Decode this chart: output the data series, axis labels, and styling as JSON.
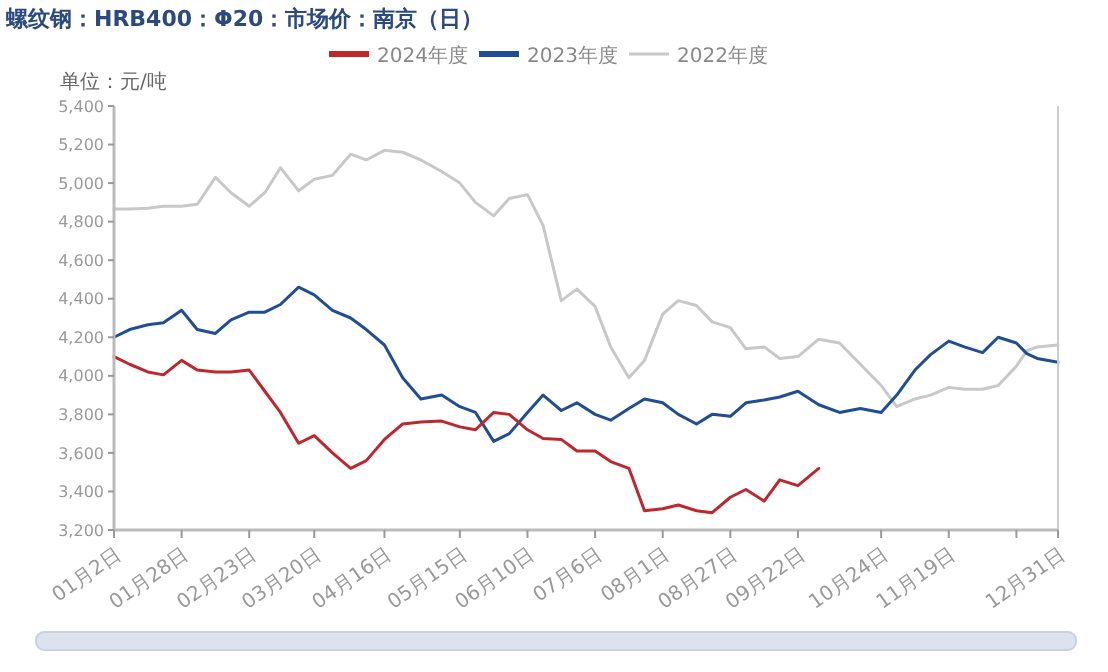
{
  "chart_data": {
    "type": "line",
    "title": "螺纹钢：HRB400：Φ20：市场价：南京（日）",
    "ylabel": "单位：元/吨",
    "x": [
      "--01-02",
      "--01-08",
      "--01-15",
      "--01-21",
      "--01-28",
      "--02-03",
      "--02-10",
      "--02-16",
      "--02-23",
      "--03-01",
      "--03-07",
      "--03-14",
      "--03-20",
      "--03-27",
      "--04-03",
      "--04-09",
      "--04-16",
      "--04-23",
      "--04-30",
      "--05-08",
      "--05-15",
      "--05-21",
      "--05-28",
      "--06-03",
      "--06-10",
      "--06-16",
      "--06-23",
      "--06-29",
      "--07-06",
      "--07-12",
      "--07-19",
      "--07-25",
      "--08-01",
      "--08-07",
      "--08-14",
      "--08-20",
      "--08-27",
      "--09-02",
      "--09-09",
      "--09-15",
      "--09-22",
      "--09-30",
      "--10-08",
      "--10-16",
      "--10-24",
      "--10-30",
      "--11-06",
      "--11-12",
      "--11-19",
      "--11-25",
      "--12-02",
      "--12-08",
      "--12-15",
      "--12-19",
      "--12-23",
      "--12-31"
    ],
    "series": [
      {
        "name": "2024年度",
        "color": "#c0272d",
        "values": [
          4100,
          4060,
          4020,
          4005,
          4080,
          4030,
          4020,
          4020,
          4030,
          3920,
          3810,
          3650,
          3690,
          3600,
          3520,
          3560,
          3670,
          3750,
          3760,
          3765,
          3735,
          3720,
          3810,
          3800,
          3720,
          3675,
          3670,
          3610,
          3610,
          3555,
          3520,
          3300,
          3310,
          3330,
          3300,
          3290,
          3370,
          3410,
          3350,
          3460,
          3430,
          3520,
          null,
          null,
          null,
          null,
          null,
          null,
          null,
          null,
          null,
          null,
          null,
          null,
          null,
          null
        ]
      },
      {
        "name": "2023年度",
        "color": "#1f4e96",
        "values": [
          4200,
          4240,
          4265,
          4275,
          4340,
          4240,
          4220,
          4290,
          4330,
          4330,
          4370,
          4460,
          4420,
          4340,
          4300,
          4240,
          4160,
          3990,
          3880,
          3900,
          3840,
          3810,
          3660,
          3700,
          3810,
          3900,
          3820,
          3860,
          3800,
          3770,
          3830,
          3880,
          3860,
          3800,
          3750,
          3800,
          3790,
          3860,
          3875,
          3890,
          3920,
          3850,
          3810,
          3830,
          3810,
          3900,
          4030,
          4110,
          4180,
          4150,
          4120,
          4200,
          4170,
          4115,
          4090,
          4070
        ]
      },
      {
        "name": "2022年度",
        "color": "#c8c8c8",
        "values": [
          4866,
          4866,
          4870,
          4880,
          4880,
          4890,
          5030,
          4950,
          4880,
          4950,
          5080,
          4960,
          5020,
          5040,
          5150,
          5120,
          5170,
          5160,
          5120,
          5060,
          5000,
          4900,
          4830,
          4920,
          4940,
          4780,
          4390,
          4450,
          4360,
          4150,
          3990,
          4080,
          4320,
          4390,
          4365,
          4280,
          4250,
          4140,
          4150,
          4090,
          4100,
          4190,
          4170,
          4060,
          3950,
          3840,
          3880,
          3900,
          3940,
          3930,
          3930,
          3950,
          4050,
          4130,
          4150,
          4160
        ]
      }
    ],
    "xlim": [
      "--01-02",
      "--12-31"
    ],
    "xticks": [
      {
        "value": "--01-02",
        "label": "01月2日"
      },
      {
        "value": "--01-28",
        "label": "01月28日"
      },
      {
        "value": "--02-23",
        "label": "02月23日"
      },
      {
        "value": "--03-20",
        "label": "03月20日"
      },
      {
        "value": "--04-16",
        "label": "04月16日"
      },
      {
        "value": "--05-15",
        "label": "05月15日"
      },
      {
        "value": "--06-10",
        "label": "06月10日"
      },
      {
        "value": "--07-06",
        "label": "07月6日"
      },
      {
        "value": "--08-01",
        "label": "08月1日"
      },
      {
        "value": "--08-27",
        "label": "08月27日"
      },
      {
        "value": "--09-22",
        "label": "09月22日"
      },
      {
        "value": "--10-24",
        "label": "10月24日"
      },
      {
        "value": "--11-19",
        "label": "11月19日"
      },
      {
        "value": "--12-15",
        "label": null
      },
      {
        "value": "--12-31",
        "label": "12月31日"
      }
    ],
    "ylim": [
      3200,
      5400
    ],
    "yticks": [
      {
        "value": 3200,
        "label": "3,200"
      },
      {
        "value": 3400,
        "label": "3,400"
      },
      {
        "value": 3600,
        "label": "3,600"
      },
      {
        "value": 3800,
        "label": "3,800"
      },
      {
        "value": 4000,
        "label": "4,000"
      },
      {
        "value": 4200,
        "label": "4,200"
      },
      {
        "value": 4400,
        "label": "4,400"
      },
      {
        "value": 4600,
        "label": "4,600"
      },
      {
        "value": 4800,
        "label": "4,800"
      },
      {
        "value": 5000,
        "label": "5,000"
      },
      {
        "value": 5200,
        "label": "5,200"
      },
      {
        "value": 5400,
        "label": "5,400"
      }
    ],
    "grid": false,
    "legend": "top",
    "marker": "none",
    "line_style": "solid"
  }
}
